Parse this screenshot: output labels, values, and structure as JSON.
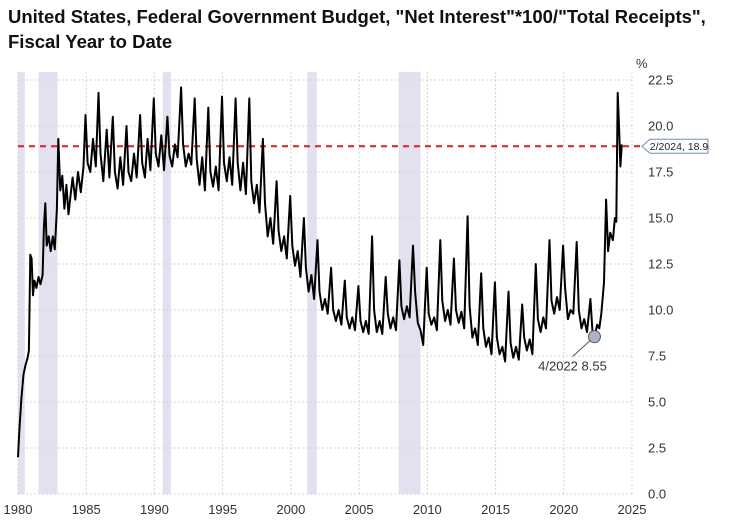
{
  "chart_data": {
    "type": "line",
    "title": "United States, Federal Government Budget, \"Net Interest\"*100/\"Total Receipts\", Fiscal Year to Date",
    "ylabel": "%",
    "xlim": [
      1980,
      2025
    ],
    "ylim": [
      0,
      22.5
    ],
    "x_ticks": [
      "1980",
      "1985",
      "1990",
      "1995",
      "2000",
      "2005",
      "2010",
      "2015",
      "2020",
      "2025"
    ],
    "y_ticks": [
      "0.0",
      "2.5",
      "5.0",
      "7.5",
      "10.0",
      "12.5",
      "15.0",
      "17.5",
      "20.0",
      "22.5"
    ],
    "grid": true,
    "recessions": [
      [
        1980.0,
        1980.5
      ],
      [
        1981.5,
        1982.9
      ],
      [
        1990.6,
        1991.2
      ],
      [
        2001.2,
        2001.9
      ],
      [
        2007.9,
        2009.5
      ]
    ],
    "reference_line": {
      "y": 18.9,
      "style": "dashed",
      "color": "#e41a1c"
    },
    "annotations": [
      {
        "x": 2022.25,
        "y": 8.55,
        "text": "4/2022 8.55"
      },
      {
        "x": 2024.1,
        "y": 18.9,
        "text": "2/2024, 18.9"
      }
    ],
    "series": [
      {
        "color": "#000000",
        "points": [
          [
            1980.0,
            2.0
          ],
          [
            1980.1,
            3.5
          ],
          [
            1980.25,
            5.2
          ],
          [
            1980.4,
            6.5
          ],
          [
            1980.55,
            7.0
          ],
          [
            1980.7,
            7.4
          ],
          [
            1980.8,
            7.8
          ],
          [
            1980.9,
            13.0
          ],
          [
            1981.0,
            12.8
          ],
          [
            1981.1,
            10.8
          ],
          [
            1981.2,
            11.6
          ],
          [
            1981.35,
            11.2
          ],
          [
            1981.5,
            11.8
          ],
          [
            1981.65,
            11.4
          ],
          [
            1981.8,
            11.9
          ],
          [
            1981.9,
            14.5
          ],
          [
            1982.0,
            15.8
          ],
          [
            1982.1,
            13.5
          ],
          [
            1982.25,
            14.0
          ],
          [
            1982.4,
            13.2
          ],
          [
            1982.55,
            14.0
          ],
          [
            1982.7,
            13.3
          ],
          [
            1982.85,
            15.5
          ],
          [
            1982.95,
            19.3
          ],
          [
            1983.1,
            16.5
          ],
          [
            1983.25,
            17.3
          ],
          [
            1983.4,
            15.5
          ],
          [
            1983.55,
            16.8
          ],
          [
            1983.7,
            15.2
          ],
          [
            1983.85,
            16.2
          ],
          [
            1984.0,
            17.2
          ],
          [
            1984.2,
            16.0
          ],
          [
            1984.4,
            17.5
          ],
          [
            1984.6,
            16.4
          ],
          [
            1984.8,
            17.8
          ],
          [
            1984.95,
            20.6
          ],
          [
            1985.1,
            18.0
          ],
          [
            1985.3,
            17.5
          ],
          [
            1985.5,
            19.3
          ],
          [
            1985.7,
            17.8
          ],
          [
            1985.9,
            21.8
          ],
          [
            1986.05,
            18.5
          ],
          [
            1986.25,
            17.0
          ],
          [
            1986.5,
            19.8
          ],
          [
            1986.7,
            17.2
          ],
          [
            1986.95,
            20.5
          ],
          [
            1987.1,
            17.5
          ],
          [
            1987.3,
            16.6
          ],
          [
            1987.5,
            18.3
          ],
          [
            1987.7,
            16.8
          ],
          [
            1987.95,
            20.0
          ],
          [
            1988.1,
            17.5
          ],
          [
            1988.3,
            17.0
          ],
          [
            1988.5,
            18.5
          ],
          [
            1988.7,
            17.2
          ],
          [
            1988.95,
            20.6
          ],
          [
            1989.1,
            18.0
          ],
          [
            1989.3,
            17.2
          ],
          [
            1989.5,
            19.3
          ],
          [
            1989.7,
            17.6
          ],
          [
            1989.95,
            21.5
          ],
          [
            1990.1,
            18.5
          ],
          [
            1990.3,
            17.8
          ],
          [
            1990.5,
            19.5
          ],
          [
            1990.7,
            17.6
          ],
          [
            1990.95,
            20.5
          ],
          [
            1991.1,
            18.4
          ],
          [
            1991.3,
            17.8
          ],
          [
            1991.5,
            19.0
          ],
          [
            1991.7,
            18.3
          ],
          [
            1991.95,
            22.1
          ],
          [
            1992.1,
            19.0
          ],
          [
            1992.3,
            17.8
          ],
          [
            1992.5,
            18.5
          ],
          [
            1992.7,
            17.9
          ],
          [
            1992.95,
            21.5
          ],
          [
            1993.1,
            18.2
          ],
          [
            1993.3,
            16.8
          ],
          [
            1993.5,
            18.3
          ],
          [
            1993.7,
            16.5
          ],
          [
            1993.95,
            21.0
          ],
          [
            1994.1,
            17.5
          ],
          [
            1994.3,
            16.7
          ],
          [
            1994.5,
            17.8
          ],
          [
            1994.7,
            16.5
          ],
          [
            1994.95,
            21.6
          ],
          [
            1995.1,
            18.0
          ],
          [
            1995.3,
            17.0
          ],
          [
            1995.5,
            18.3
          ],
          [
            1995.7,
            16.8
          ],
          [
            1995.95,
            21.5
          ],
          [
            1996.1,
            18.0
          ],
          [
            1996.3,
            16.5
          ],
          [
            1996.5,
            18.0
          ],
          [
            1996.7,
            16.3
          ],
          [
            1996.95,
            21.5
          ],
          [
            1997.1,
            17.0
          ],
          [
            1997.3,
            15.8
          ],
          [
            1997.5,
            16.8
          ],
          [
            1997.7,
            15.3
          ],
          [
            1997.95,
            19.3
          ],
          [
            1998.1,
            15.8
          ],
          [
            1998.3,
            14.0
          ],
          [
            1998.5,
            15.0
          ],
          [
            1998.7,
            13.6
          ],
          [
            1998.95,
            17.0
          ],
          [
            1999.1,
            14.3
          ],
          [
            1999.3,
            13.2
          ],
          [
            1999.5,
            14.0
          ],
          [
            1999.7,
            12.8
          ],
          [
            1999.95,
            16.2
          ],
          [
            2000.1,
            13.5
          ],
          [
            2000.3,
            12.4
          ],
          [
            2000.5,
            13.2
          ],
          [
            2000.7,
            11.8
          ],
          [
            2000.95,
            15.0
          ],
          [
            2001.1,
            12.3
          ],
          [
            2001.3,
            11.0
          ],
          [
            2001.5,
            11.9
          ],
          [
            2001.7,
            10.6
          ],
          [
            2001.95,
            13.8
          ],
          [
            2002.1,
            11.0
          ],
          [
            2002.3,
            10.0
          ],
          [
            2002.5,
            10.6
          ],
          [
            2002.7,
            9.8
          ],
          [
            2002.95,
            12.3
          ],
          [
            2003.1,
            10.0
          ],
          [
            2003.3,
            9.4
          ],
          [
            2003.5,
            10.0
          ],
          [
            2003.7,
            9.2
          ],
          [
            2003.95,
            11.6
          ],
          [
            2004.1,
            9.6
          ],
          [
            2004.3,
            9.0
          ],
          [
            2004.5,
            9.6
          ],
          [
            2004.7,
            8.9
          ],
          [
            2004.95,
            11.3
          ],
          [
            2005.1,
            9.4
          ],
          [
            2005.3,
            8.8
          ],
          [
            2005.5,
            9.4
          ],
          [
            2005.7,
            8.7
          ],
          [
            2005.95,
            14.0
          ],
          [
            2006.1,
            10.0
          ],
          [
            2006.3,
            8.8
          ],
          [
            2006.5,
            9.4
          ],
          [
            2006.7,
            8.7
          ],
          [
            2006.95,
            11.8
          ],
          [
            2007.1,
            9.8
          ],
          [
            2007.3,
            9.0
          ],
          [
            2007.5,
            9.6
          ],
          [
            2007.7,
            8.9
          ],
          [
            2007.95,
            12.7
          ],
          [
            2008.1,
            10.2
          ],
          [
            2008.3,
            9.5
          ],
          [
            2008.5,
            10.2
          ],
          [
            2008.7,
            9.6
          ],
          [
            2008.95,
            13.5
          ],
          [
            2009.1,
            11.0
          ],
          [
            2009.3,
            9.3
          ],
          [
            2009.5,
            8.9
          ],
          [
            2009.7,
            8.1
          ],
          [
            2009.95,
            12.3
          ],
          [
            2010.1,
            9.8
          ],
          [
            2010.3,
            9.2
          ],
          [
            2010.5,
            9.6
          ],
          [
            2010.7,
            8.9
          ],
          [
            2010.95,
            13.8
          ],
          [
            2011.1,
            10.5
          ],
          [
            2011.3,
            9.4
          ],
          [
            2011.5,
            10.0
          ],
          [
            2011.7,
            9.2
          ],
          [
            2011.95,
            12.8
          ],
          [
            2012.1,
            10.0
          ],
          [
            2012.3,
            9.3
          ],
          [
            2012.5,
            9.9
          ],
          [
            2012.7,
            9.0
          ],
          [
            2012.95,
            15.1
          ],
          [
            2013.1,
            10.2
          ],
          [
            2013.3,
            8.5
          ],
          [
            2013.5,
            9.0
          ],
          [
            2013.7,
            8.1
          ],
          [
            2013.95,
            12.0
          ],
          [
            2014.1,
            9.0
          ],
          [
            2014.3,
            8.0
          ],
          [
            2014.5,
            8.5
          ],
          [
            2014.7,
            7.6
          ],
          [
            2014.95,
            11.5
          ],
          [
            2015.1,
            8.5
          ],
          [
            2015.3,
            7.6
          ],
          [
            2015.5,
            8.0
          ],
          [
            2015.7,
            7.2
          ],
          [
            2015.95,
            11.0
          ],
          [
            2016.1,
            8.2
          ],
          [
            2016.3,
            7.4
          ],
          [
            2016.5,
            8.0
          ],
          [
            2016.7,
            7.3
          ],
          [
            2016.95,
            10.3
          ],
          [
            2017.1,
            8.5
          ],
          [
            2017.3,
            7.8
          ],
          [
            2017.5,
            8.4
          ],
          [
            2017.7,
            7.6
          ],
          [
            2017.95,
            12.5
          ],
          [
            2018.1,
            9.5
          ],
          [
            2018.3,
            8.8
          ],
          [
            2018.5,
            9.6
          ],
          [
            2018.7,
            9.0
          ],
          [
            2018.95,
            13.8
          ],
          [
            2019.1,
            10.5
          ],
          [
            2019.3,
            9.8
          ],
          [
            2019.5,
            10.7
          ],
          [
            2019.7,
            10.0
          ],
          [
            2019.95,
            13.5
          ],
          [
            2020.1,
            11.2
          ],
          [
            2020.3,
            9.5
          ],
          [
            2020.5,
            10.0
          ],
          [
            2020.7,
            9.8
          ],
          [
            2020.95,
            13.7
          ],
          [
            2021.1,
            10.0
          ],
          [
            2021.3,
            9.0
          ],
          [
            2021.5,
            9.5
          ],
          [
            2021.7,
            8.8
          ],
          [
            2021.95,
            10.6
          ],
          [
            2022.1,
            8.9
          ],
          [
            2022.25,
            8.55
          ],
          [
            2022.45,
            9.2
          ],
          [
            2022.6,
            9.0
          ],
          [
            2022.75,
            9.8
          ],
          [
            2022.95,
            11.5
          ],
          [
            2023.1,
            16.0
          ],
          [
            2023.25,
            13.2
          ],
          [
            2023.4,
            14.2
          ],
          [
            2023.6,
            13.8
          ],
          [
            2023.75,
            15.0
          ],
          [
            2023.85,
            14.8
          ],
          [
            2023.95,
            21.8
          ],
          [
            2024.05,
            20.0
          ],
          [
            2024.1,
            18.9
          ],
          [
            2024.15,
            17.8
          ],
          [
            2024.25,
            19.0
          ]
        ]
      }
    ]
  }
}
